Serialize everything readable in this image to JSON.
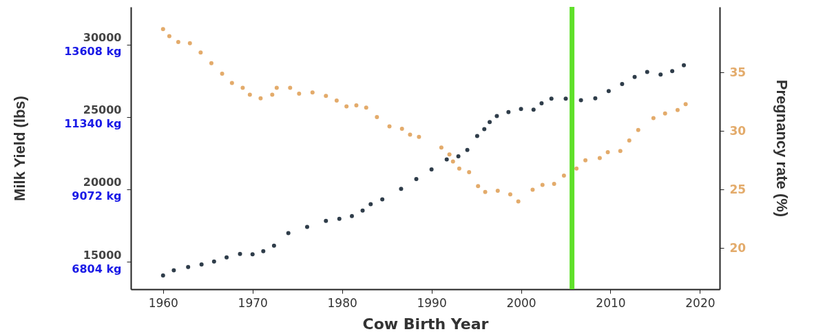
{
  "chart_data": {
    "type": "scatter",
    "xlabel": "Cow Birth Year",
    "ylabel": "Milk Yield (lbs)",
    "y2label": "Pregnancy rate (%)",
    "xlim": [
      1956.4,
      2022.2
    ],
    "xticks": [
      1960,
      1970,
      1980,
      1990,
      2000,
      2010,
      2020
    ],
    "ylim": [
      13100,
      32600
    ],
    "yticks": [
      15000,
      20000,
      25000,
      30000
    ],
    "y3lim": [
      5942,
      14787
    ],
    "y3ticks": [
      {
        "value": 6804,
        "label": "6804 kg"
      },
      {
        "value": 9072,
        "label": "9072 kg"
      },
      {
        "value": 11340,
        "label": "11340 kg"
      },
      {
        "value": 13608,
        "label": "13608 kg"
      }
    ],
    "y2lim": [
      16.5,
      40.6
    ],
    "y2ticks": [
      20,
      25,
      30,
      35
    ],
    "grid": false,
    "marker": "circle",
    "ref_lines": [
      {
        "axis": "x",
        "value": 2005.7,
        "color": "#5fe02a"
      }
    ],
    "series": [
      {
        "color": "#2f3d4a",
        "x": [
          1960,
          1961.2,
          1962.8,
          1964.3,
          1965.7,
          1967.1,
          1968.6,
          1970,
          1971.2,
          1972.4,
          1974,
          1976.1,
          1978.2,
          1979.7,
          1981.1,
          1982.3,
          1983.2,
          1984.5,
          1986.6,
          1988.3,
          1990,
          1991.7,
          1993,
          1994,
          1995.1,
          1995.9,
          1996.5,
          1997.3,
          1998.6,
          2000,
          2001.4,
          2002.3,
          2003.4,
          2005,
          2006.7,
          2008.3,
          2009.8,
          2011.3,
          2012.7,
          2014.1,
          2015.6,
          2016.9,
          2018.2
        ],
        "values": [
          14050,
          14410,
          14630,
          14810,
          15010,
          15300,
          15540,
          15510,
          15730,
          16110,
          16980,
          17410,
          17820,
          17960,
          18150,
          18530,
          18970,
          19310,
          20030,
          20710,
          21380,
          22070,
          22280,
          22720,
          23680,
          24160,
          24650,
          25060,
          25330,
          25550,
          25500,
          25940,
          26260,
          26260,
          26150,
          26290,
          26780,
          27270,
          27760,
          28110,
          27930,
          28160,
          28570
        ]
      },
      {
        "color": "#e3ab6b",
        "axis": "y2",
        "x": [
          1960,
          1960.7,
          1961.7,
          1963,
          1964.2,
          1965.4,
          1966.6,
          1967.7,
          1968.9,
          1969.7,
          1970.9,
          1972.2,
          1972.7,
          1974.2,
          1975.2,
          1976.7,
          1978.2,
          1979.4,
          1980.5,
          1981.6,
          1982.7,
          1983.9,
          1985.3,
          1986.7,
          1987.6,
          1988.6,
          1991.1,
          1992,
          1992.4,
          1993.1,
          1994.2,
          1995.2,
          1996,
          1997.4,
          1998.8,
          1999.7,
          2001.3,
          2002.4,
          2003.7,
          2004.8,
          2006.2,
          2007.2,
          2008.8,
          2009.7,
          2011.1,
          2012.1,
          2013.1,
          2014.8,
          2016.1,
          2017.5,
          2018.4
        ],
        "values": [
          38.7,
          38.1,
          37.6,
          37.5,
          36.7,
          35.8,
          34.9,
          34.1,
          33.7,
          33.1,
          32.8,
          33.1,
          33.7,
          33.7,
          33.2,
          33.3,
          33.0,
          32.6,
          32.1,
          32.2,
          32.0,
          31.2,
          30.4,
          30.2,
          29.7,
          29.5,
          28.6,
          28.0,
          27.4,
          26.8,
          26.5,
          25.3,
          24.8,
          24.9,
          24.6,
          24.0,
          25.0,
          25.4,
          25.5,
          26.2,
          26.8,
          27.5,
          27.7,
          28.2,
          28.3,
          29.2,
          30.1,
          31.1,
          31.5,
          31.8,
          32.3
        ]
      }
    ]
  }
}
